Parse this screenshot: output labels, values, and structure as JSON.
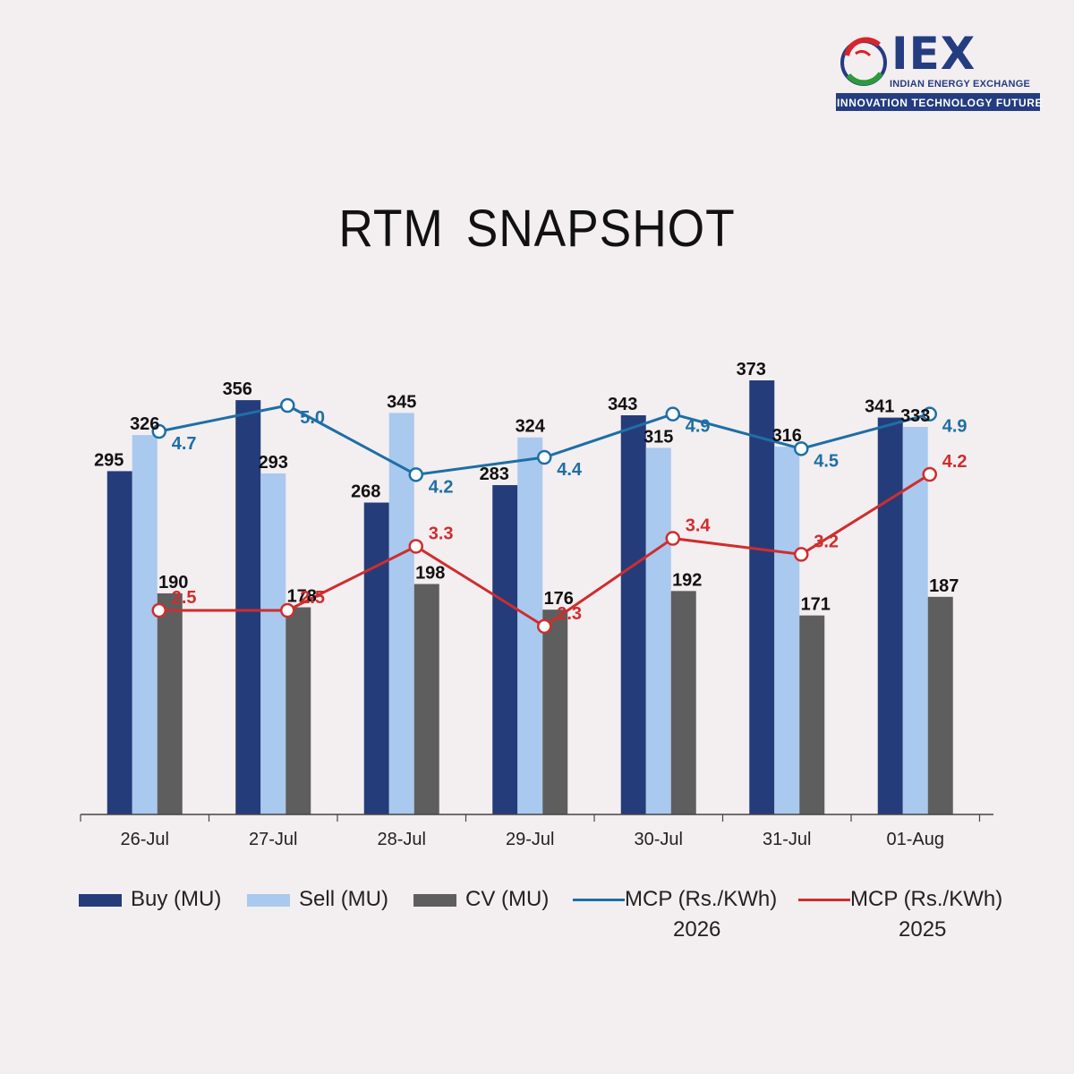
{
  "logo": {
    "name": "IEX",
    "subtitle": "INDIAN ENERGY EXCHANGE",
    "tagline": "INNOVATION   TECHNOLOGY   FUTURE"
  },
  "colors": {
    "background": "#f3eef0",
    "buy": "#253c7a",
    "sell": "#a9c9ee",
    "cv": "#5e5e5e",
    "mcp_2026": "#1d6fa5",
    "mcp_2025": "#cf2d2d",
    "brand_blue": "#243c80",
    "brand_red": "#d8232a",
    "brand_green": "#2c9b3a"
  },
  "chart_data": {
    "type": "bar",
    "title": "RTM  SNAPSHOT",
    "categories": [
      "26-Jul",
      "27-Jul",
      "28-Jul",
      "29-Jul",
      "30-Jul",
      "31-Jul",
      "01-Aug"
    ],
    "series": [
      {
        "name": "Buy (MU)",
        "type": "bar",
        "values": [
          295,
          356,
          268,
          283,
          343,
          373,
          341
        ]
      },
      {
        "name": "Sell (MU)",
        "type": "bar",
        "values": [
          326,
          293,
          345,
          324,
          315,
          316,
          333
        ]
      },
      {
        "name": "CV (MU)",
        "type": "bar",
        "values": [
          190,
          178,
          198,
          176,
          192,
          171,
          187
        ]
      },
      {
        "name": "MCP (Rs./KWh) 2026",
        "type": "line",
        "values": [
          4.7,
          5.0,
          4.2,
          4.4,
          4.9,
          4.5,
          4.9
        ]
      },
      {
        "name": "MCP (Rs./KWh) 2025",
        "type": "line",
        "values": [
          2.5,
          2.5,
          3.3,
          2.3,
          3.4,
          3.2,
          4.2
        ]
      }
    ],
    "ylim_bars": [
      0,
      400
    ],
    "ylim_lines": [
      0,
      6.5
    ],
    "grid": false,
    "legend_position": "bottom"
  },
  "legend": [
    {
      "label": "Buy (MU)",
      "kind": "bar",
      "color_key": "buy"
    },
    {
      "label": "Sell (MU)",
      "kind": "bar",
      "color_key": "sell"
    },
    {
      "label": "CV (MU)",
      "kind": "bar",
      "color_key": "cv"
    },
    {
      "label": "MCP (Rs./KWh)",
      "label2": "2026",
      "kind": "line",
      "color_key": "mcp_2026"
    },
    {
      "label": "MCP (Rs./KWh)",
      "label2": "2025",
      "kind": "line",
      "color_key": "mcp_2025"
    }
  ]
}
